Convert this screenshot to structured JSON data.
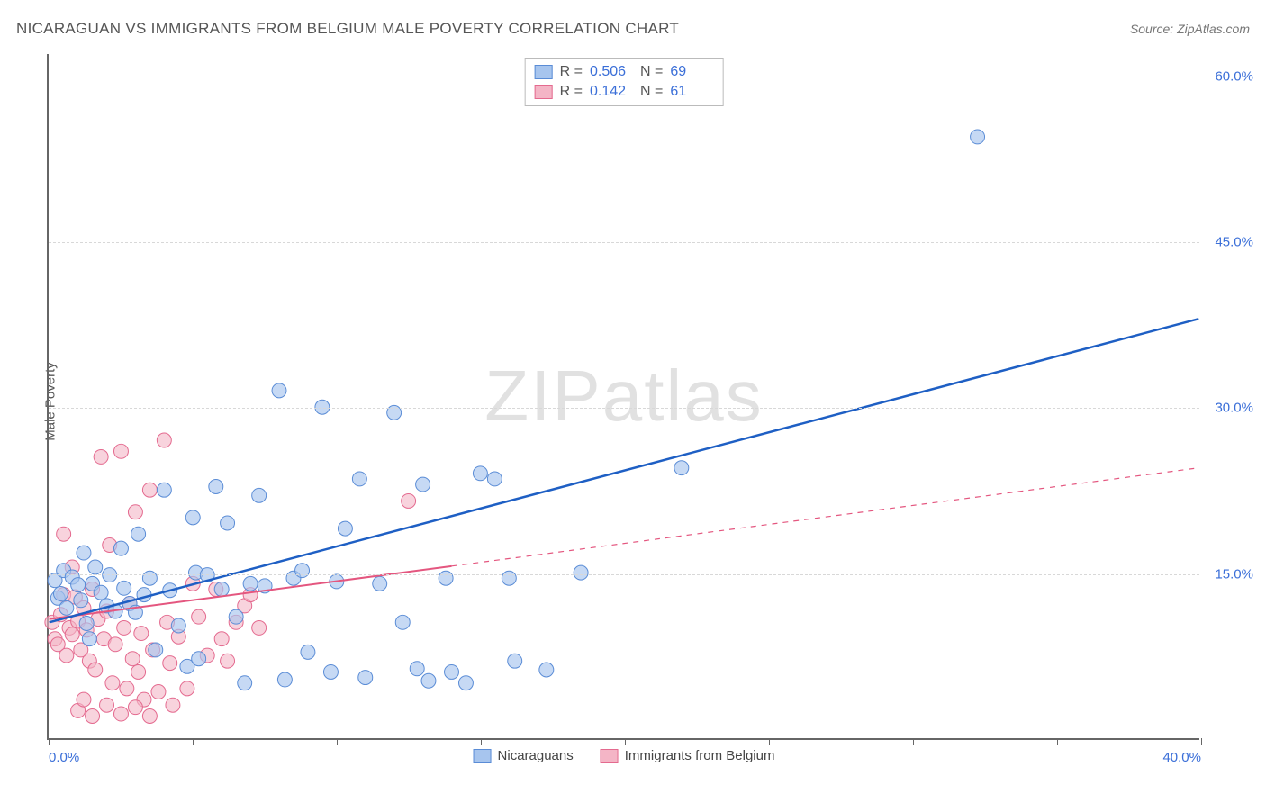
{
  "header": {
    "title": "NICARAGUAN VS IMMIGRANTS FROM BELGIUM MALE POVERTY CORRELATION CHART",
    "source_label": "Source: ",
    "source_name": "ZipAtlas.com"
  },
  "axes": {
    "ylabel": "Male Poverty",
    "xlim": [
      0,
      40
    ],
    "ylim": [
      0,
      62
    ],
    "x_ticks": [
      0,
      5,
      10,
      15,
      20,
      25,
      30,
      35,
      40
    ],
    "x_tick_labels": {
      "0": "0.0%",
      "40": "40.0%"
    },
    "y_ticks": [
      15,
      30,
      45,
      60
    ],
    "y_tick_labels": [
      "15.0%",
      "30.0%",
      "45.0%",
      "60.0%"
    ],
    "grid_color": "#d8d8d8"
  },
  "watermark": {
    "zip": "ZIP",
    "atlas": "atlas"
  },
  "series": {
    "a": {
      "name": "Nicaraguans",
      "fill": "#a7c5ee",
      "stroke": "#5a8cd6",
      "line_color": "#1e5fc4",
      "line_width": 2.5,
      "line_style": "solid",
      "marker_radius": 8,
      "marker_opacity": 0.65,
      "R": "0.506",
      "N": "69",
      "trend": {
        "x1": 0,
        "y1": 10.5,
        "x2": 40,
        "y2": 38,
        "solid_until_x": 40
      },
      "points": [
        [
          0.2,
          14.3
        ],
        [
          0.3,
          12.7
        ],
        [
          0.4,
          13.1
        ],
        [
          0.5,
          15.2
        ],
        [
          0.6,
          11.8
        ],
        [
          0.8,
          14.6
        ],
        [
          1.0,
          13.9
        ],
        [
          1.1,
          12.5
        ],
        [
          1.2,
          16.8
        ],
        [
          1.3,
          10.4
        ],
        [
          1.5,
          14.0
        ],
        [
          1.6,
          15.5
        ],
        [
          1.8,
          13.2
        ],
        [
          2.0,
          12.0
        ],
        [
          2.1,
          14.8
        ],
        [
          2.3,
          11.5
        ],
        [
          2.5,
          17.2
        ],
        [
          2.6,
          13.6
        ],
        [
          2.8,
          12.2
        ],
        [
          3.0,
          11.4
        ],
        [
          3.1,
          18.5
        ],
        [
          3.3,
          13.0
        ],
        [
          3.5,
          14.5
        ],
        [
          3.7,
          8.0
        ],
        [
          4.0,
          22.5
        ],
        [
          4.2,
          13.4
        ],
        [
          4.5,
          10.2
        ],
        [
          4.8,
          6.5
        ],
        [
          5.0,
          20.0
        ],
        [
          5.1,
          15.0
        ],
        [
          5.2,
          7.2
        ],
        [
          5.5,
          14.8
        ],
        [
          5.8,
          22.8
        ],
        [
          6.0,
          13.5
        ],
        [
          6.2,
          19.5
        ],
        [
          6.5,
          11.0
        ],
        [
          6.8,
          5.0
        ],
        [
          7.0,
          14.0
        ],
        [
          7.3,
          22.0
        ],
        [
          7.5,
          13.8
        ],
        [
          8.0,
          31.5
        ],
        [
          8.2,
          5.3
        ],
        [
          8.5,
          14.5
        ],
        [
          8.8,
          15.2
        ],
        [
          9.0,
          7.8
        ],
        [
          9.5,
          30.0
        ],
        [
          9.8,
          6.0
        ],
        [
          10.0,
          14.2
        ],
        [
          10.3,
          19.0
        ],
        [
          10.8,
          23.5
        ],
        [
          11.0,
          5.5
        ],
        [
          11.5,
          14.0
        ],
        [
          12.0,
          29.5
        ],
        [
          12.3,
          10.5
        ],
        [
          12.8,
          6.3
        ],
        [
          13.0,
          23.0
        ],
        [
          13.2,
          5.2
        ],
        [
          13.8,
          14.5
        ],
        [
          14.0,
          6.0
        ],
        [
          14.5,
          5.0
        ],
        [
          15.0,
          24.0
        ],
        [
          15.5,
          23.5
        ],
        [
          16.0,
          14.5
        ],
        [
          16.2,
          7.0
        ],
        [
          17.3,
          6.2
        ],
        [
          18.5,
          15.0
        ],
        [
          22.0,
          24.5
        ],
        [
          32.3,
          54.5
        ],
        [
          1.4,
          9.0
        ]
      ]
    },
    "b": {
      "name": "Immigrants from Belgium",
      "fill": "#f4b5c6",
      "stroke": "#e46a8f",
      "line_color": "#e4567f",
      "line_width": 2,
      "line_style": "dashed",
      "marker_radius": 8,
      "marker_opacity": 0.6,
      "R": "0.142",
      "N": "61",
      "trend": {
        "x1": 0,
        "y1": 10.8,
        "x2": 40,
        "y2": 24.5,
        "solid_until_x": 14
      },
      "points": [
        [
          0.1,
          10.5
        ],
        [
          0.2,
          9.0
        ],
        [
          0.3,
          8.5
        ],
        [
          0.4,
          11.2
        ],
        [
          0.5,
          13.0
        ],
        [
          0.6,
          7.5
        ],
        [
          0.7,
          10.0
        ],
        [
          0.8,
          9.4
        ],
        [
          0.9,
          12.8
        ],
        [
          1.0,
          10.6
        ],
        [
          1.1,
          8.0
        ],
        [
          1.2,
          11.8
        ],
        [
          1.3,
          9.8
        ],
        [
          1.4,
          7.0
        ],
        [
          1.5,
          13.5
        ],
        [
          1.6,
          6.2
        ],
        [
          1.7,
          10.8
        ],
        [
          1.8,
          25.5
        ],
        [
          1.9,
          9.0
        ],
        [
          2.0,
          11.5
        ],
        [
          2.1,
          17.5
        ],
        [
          2.2,
          5.0
        ],
        [
          2.3,
          8.5
        ],
        [
          2.5,
          26.0
        ],
        [
          2.6,
          10.0
        ],
        [
          2.7,
          4.5
        ],
        [
          2.8,
          12.2
        ],
        [
          2.9,
          7.2
        ],
        [
          3.0,
          20.5
        ],
        [
          3.1,
          6.0
        ],
        [
          3.2,
          9.5
        ],
        [
          3.3,
          3.5
        ],
        [
          3.5,
          22.5
        ],
        [
          3.6,
          8.0
        ],
        [
          3.8,
          4.2
        ],
        [
          4.0,
          27.0
        ],
        [
          4.1,
          10.5
        ],
        [
          4.2,
          6.8
        ],
        [
          4.3,
          3.0
        ],
        [
          4.5,
          9.2
        ],
        [
          4.8,
          4.5
        ],
        [
          5.0,
          14.0
        ],
        [
          5.2,
          11.0
        ],
        [
          5.5,
          7.5
        ],
        [
          5.8,
          13.5
        ],
        [
          6.0,
          9.0
        ],
        [
          6.2,
          7.0
        ],
        [
          6.5,
          10.5
        ],
        [
          6.8,
          12.0
        ],
        [
          7.0,
          13.0
        ],
        [
          7.3,
          10.0
        ],
        [
          1.0,
          2.5
        ],
        [
          1.5,
          2.0
        ],
        [
          2.0,
          3.0
        ],
        [
          2.5,
          2.2
        ],
        [
          3.0,
          2.8
        ],
        [
          3.5,
          2.0
        ],
        [
          0.5,
          18.5
        ],
        [
          0.8,
          15.5
        ],
        [
          12.5,
          21.5
        ],
        [
          1.2,
          3.5
        ]
      ]
    }
  },
  "legend_top": {
    "r_label": "R =",
    "n_label": "N ="
  },
  "colors": {
    "axis": "#666666",
    "text": "#555555",
    "tick_value": "#3b6fd8",
    "background": "#ffffff"
  }
}
